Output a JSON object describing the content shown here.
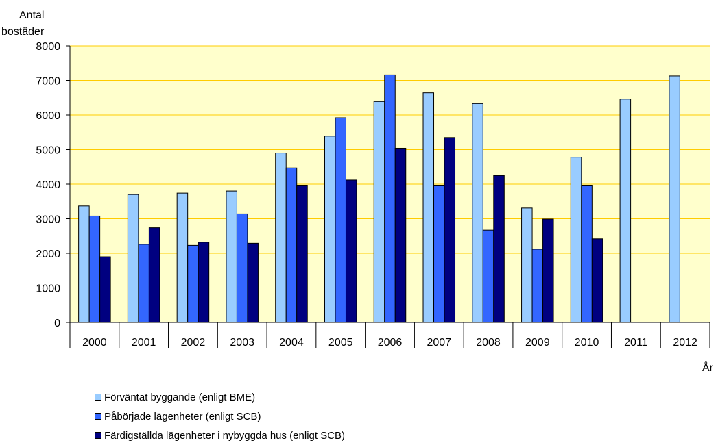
{
  "chart_data": {
    "type": "bar",
    "ylabel_line1": "Antal",
    "ylabel_line2": "bostäder",
    "xlabel": "År",
    "ylim": [
      0,
      8000
    ],
    "yticks": [
      0,
      1000,
      2000,
      3000,
      4000,
      5000,
      6000,
      7000,
      8000
    ],
    "grid": true,
    "legend_position": "bottom-left",
    "plot_background": "#FFFFCC",
    "categories": [
      "2000",
      "2001",
      "2002",
      "2003",
      "2004",
      "2005",
      "2006",
      "2007",
      "2008",
      "2009",
      "2010",
      "2011",
      "2012"
    ],
    "series": [
      {
        "name": "Förväntat byggande (enligt BME)",
        "color": "#99CCFF",
        "values": [
          3370,
          3700,
          3740,
          3800,
          4900,
          5390,
          6390,
          6640,
          6330,
          3310,
          4780,
          6460,
          7130
        ]
      },
      {
        "name": "Påbörjade lägenheter (enligt SCB)",
        "color": "#3366FF",
        "values": [
          3080,
          2260,
          2230,
          3140,
          4470,
          5920,
          7160,
          3970,
          2670,
          2120,
          3970,
          null,
          null
        ]
      },
      {
        "name": "Färdigställda lägenheter i nybyggda hus (enligt SCB)",
        "color": "#000080",
        "values": [
          1900,
          2740,
          2320,
          2290,
          3970,
          4120,
          5040,
          5350,
          4250,
          2990,
          2420,
          null,
          null
        ]
      }
    ]
  }
}
